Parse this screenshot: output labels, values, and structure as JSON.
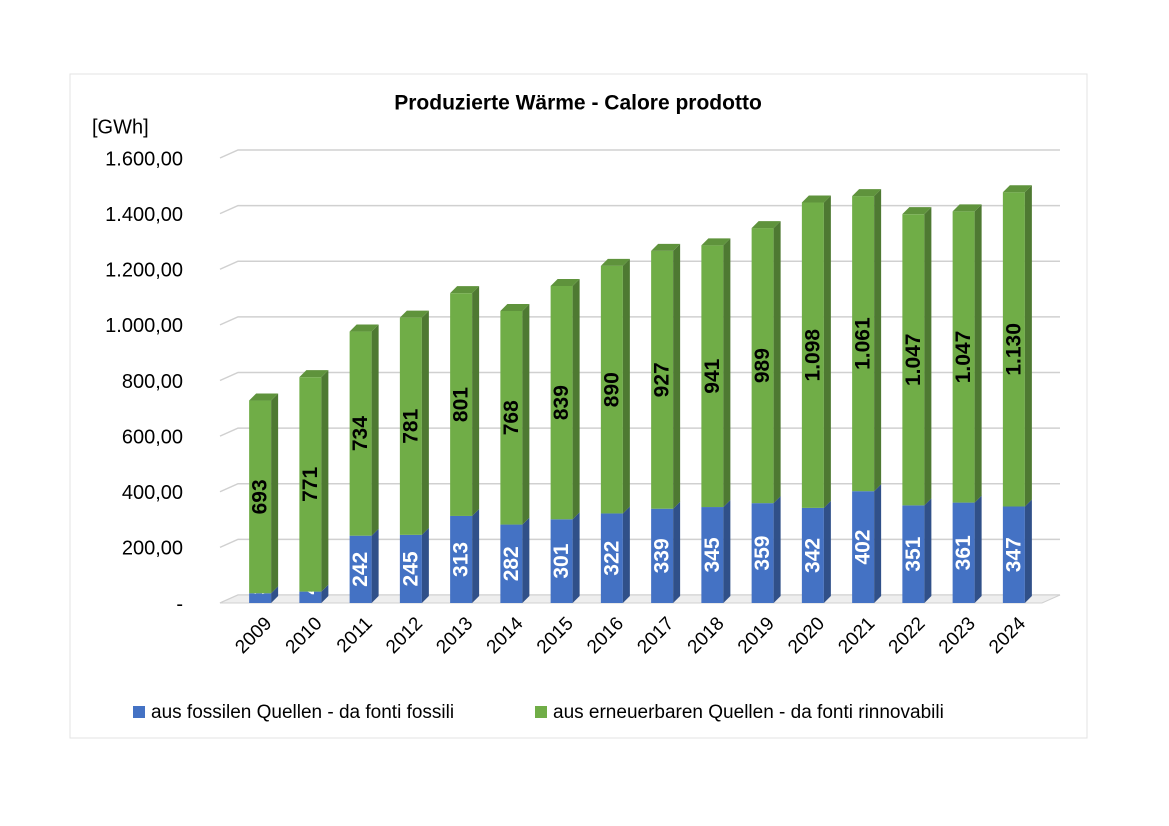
{
  "chart_data": {
    "type": "stacked_bar",
    "title": "Produzierte Wärme - Calore prodotto",
    "y_label": "[GWh]",
    "categories": [
      "2009",
      "2010",
      "2011",
      "2012",
      "2013",
      "2014",
      "2015",
      "2016",
      "2017",
      "2018",
      "2019",
      "2020",
      "2021",
      "2022",
      "2023",
      "2024"
    ],
    "series": [
      {
        "name": "aus fossilen Quellen - da fonti fossili",
        "color": "#4472c4",
        "values": [
          35,
          41,
          242,
          245,
          313,
          282,
          301,
          322,
          339,
          345,
          359,
          342,
          402,
          351,
          361,
          347
        ]
      },
      {
        "name": "aus erneuerbaren Quellen - da fonti rinnovabili",
        "color": "#70ad47",
        "values": [
          693,
          771,
          734,
          781,
          801,
          768,
          839,
          890,
          927,
          941,
          989,
          1098,
          1061,
          1047,
          1047,
          1130
        ],
        "value_labels": [
          "693",
          "771",
          "734",
          "781",
          "801",
          "768",
          "839",
          "890",
          "927",
          "941",
          "989",
          "1.098",
          "1.061",
          "1.047",
          "1.047",
          "1.130"
        ]
      }
    ],
    "ylim": [
      0,
      1600
    ],
    "yticks": [
      {
        "value": 0,
        "label": "-"
      },
      {
        "value": 200,
        "label": "200,00"
      },
      {
        "value": 400,
        "label": "400,00"
      },
      {
        "value": 600,
        "label": "600,00"
      },
      {
        "value": 800,
        "label": "800,00"
      },
      {
        "value": 1000,
        "label": "1.000,00"
      },
      {
        "value": 1200,
        "label": "1.200,00"
      },
      {
        "value": 1400,
        "label": "1.400,00"
      },
      {
        "value": 1600,
        "label": "1.600,00"
      }
    ],
    "grid": true,
    "legend": "bottom"
  }
}
